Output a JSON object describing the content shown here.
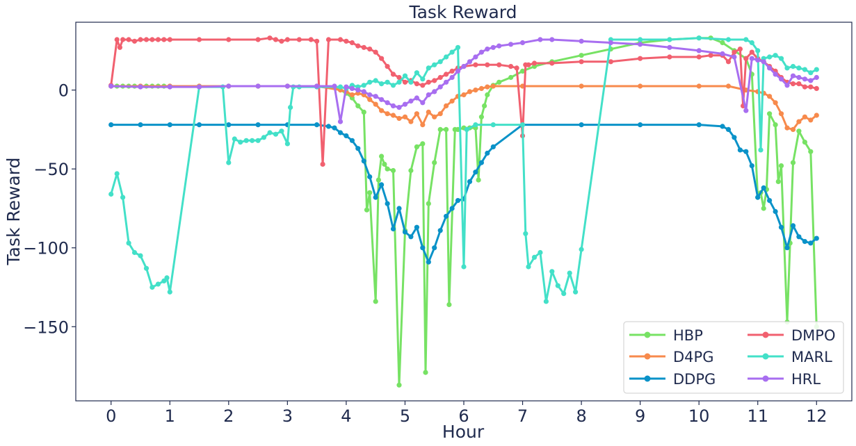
{
  "chart_data": {
    "type": "line",
    "title": "Task Reward",
    "xlabel": "Hour",
    "ylabel": "Task Reward",
    "xlim": [
      -0.6,
      12.6
    ],
    "ylim": [
      -197,
      43
    ],
    "xticks": [
      0,
      1,
      2,
      3,
      4,
      5,
      6,
      7,
      8,
      9,
      10,
      11,
      12
    ],
    "xtick_labels": [
      "0",
      "1",
      "2",
      "3",
      "4",
      "5",
      "6",
      "7",
      "8",
      "9",
      "10",
      "11",
      "12"
    ],
    "yticks": [
      0,
      -50,
      -100,
      -150
    ],
    "ytick_labels": [
      "0",
      "−50",
      "−100",
      "−150"
    ],
    "grid": false,
    "legend": {
      "placement": "lower-right",
      "columns": 2
    },
    "series": [
      {
        "name": "HBP",
        "color": "#77e264",
        "x": [
          0,
          0.1,
          0.2,
          0.3,
          0.4,
          0.5,
          0.6,
          0.7,
          0.8,
          0.9,
          1,
          1.5,
          2,
          2.5,
          3,
          3.5,
          3.8,
          4.0,
          4.1,
          4.2,
          4.3,
          4.35,
          4.4,
          4.5,
          4.55,
          4.6,
          4.65,
          4.7,
          4.8,
          4.9,
          5.0,
          5.1,
          5.2,
          5.3,
          5.35,
          5.4,
          5.5,
          5.6,
          5.7,
          5.75,
          5.85,
          5.9,
          6.0,
          6.1,
          6.2,
          6.25,
          6.3,
          6.35,
          6.4,
          6.5,
          6.6,
          6.8,
          7.0,
          7.2,
          7.5,
          8.0,
          8.5,
          9.0,
          9.5,
          10.0,
          10.2,
          10.4,
          10.6,
          10.8,
          10.9,
          11.0,
          11.05,
          11.1,
          11.15,
          11.2,
          11.3,
          11.35,
          11.4,
          11.5,
          11.55,
          11.6,
          11.7,
          11.8,
          11.9,
          12.0
        ],
        "y": [
          2.5,
          2.5,
          2.5,
          2.5,
          2.5,
          2.5,
          2.5,
          2.5,
          2.5,
          2.5,
          2.5,
          2.5,
          2.5,
          2.5,
          2.5,
          2.5,
          2,
          -2,
          -5,
          -10,
          -14,
          -76,
          -65,
          -134,
          -57,
          -42,
          -47,
          -50,
          -51,
          -187,
          -89,
          -51,
          -36,
          -34,
          -179,
          -72,
          -46,
          -25,
          -25,
          -136,
          -25,
          -25,
          -24,
          -24,
          -24,
          -57,
          -17,
          -10,
          -3,
          3,
          5,
          8,
          12,
          15,
          18,
          22,
          26,
          30,
          32,
          33,
          33,
          30,
          25,
          20,
          10,
          -68,
          -65,
          -75,
          -63,
          -15,
          -22,
          -58,
          -48,
          -147,
          -97,
          -46,
          -26,
          -33,
          -39,
          -150
        ],
        "markers": true
      },
      {
        "name": "D4PG",
        "color": "#f78a4c",
        "x": [
          0,
          0.5,
          1,
          1.5,
          2,
          2.5,
          3,
          3.5,
          3.9,
          4.0,
          4.1,
          4.2,
          4.3,
          4.4,
          4.5,
          4.6,
          4.7,
          4.8,
          4.9,
          5.0,
          5.1,
          5.2,
          5.3,
          5.4,
          5.5,
          5.6,
          5.7,
          5.8,
          5.9,
          6.0,
          6.1,
          6.2,
          6.3,
          6.4,
          6.5,
          7,
          8,
          9,
          10,
          10.5,
          10.8,
          11.0,
          11.1,
          11.2,
          11.3,
          11.4,
          11.5,
          11.6,
          11.7,
          11.8,
          11.9,
          12.0
        ],
        "y": [
          2.5,
          2.5,
          2.5,
          2.5,
          2.5,
          2.5,
          2.5,
          2.5,
          0,
          -1,
          -3,
          -2,
          -3,
          -6,
          -9,
          -13,
          -15,
          -16,
          -18,
          -17,
          -20,
          -15,
          -22,
          -14,
          -17,
          -15,
          -10,
          -7,
          -4,
          -3,
          -1,
          0,
          1,
          2,
          2.5,
          2.5,
          2.5,
          2.5,
          2.5,
          2.5,
          0,
          -1,
          -2,
          -4,
          -8,
          -15,
          -24,
          -25,
          -20,
          -17,
          -19,
          -16
        ],
        "markers": true
      },
      {
        "name": "DDPG",
        "color": "#0a92c8",
        "x": [
          0,
          0.5,
          1,
          1.5,
          2,
          2.5,
          3,
          3.5,
          3.7,
          3.8,
          3.9,
          4.0,
          4.1,
          4.2,
          4.3,
          4.4,
          4.5,
          4.6,
          4.7,
          4.8,
          4.9,
          5.0,
          5.1,
          5.2,
          5.3,
          5.4,
          5.5,
          5.6,
          5.7,
          5.8,
          5.9,
          6.0,
          6.1,
          6.2,
          6.3,
          6.4,
          6.5,
          7,
          8,
          9,
          10,
          10.4,
          10.5,
          10.6,
          10.7,
          10.8,
          10.9,
          11.0,
          11.1,
          11.2,
          11.3,
          11.4,
          11.5,
          11.6,
          11.7,
          11.8,
          11.9,
          12.0
        ],
        "y": [
          -22,
          -22,
          -22,
          -22,
          -22,
          -22,
          -22,
          -22,
          -23,
          -24,
          -27,
          -29,
          -32,
          -37,
          -45,
          -55,
          -68,
          -60,
          -72,
          -88,
          -75,
          -90,
          -93,
          -87,
          -100,
          -109,
          -100,
          -89,
          -80,
          -75,
          -70,
          -69,
          -58,
          -52,
          -46,
          -40,
          -36,
          -22,
          -22,
          -22,
          -22,
          -23,
          -25,
          -30,
          -38,
          -39,
          -48,
          -68,
          -62,
          -70,
          -77,
          -87,
          -100,
          -86,
          -93,
          -96,
          -97,
          -94
        ],
        "markers": true
      },
      {
        "name": "DMPO",
        "color": "#f1606f",
        "x": [
          0,
          0.1,
          0.15,
          0.2,
          0.3,
          0.4,
          0.5,
          0.6,
          0.7,
          0.8,
          0.9,
          1,
          1.5,
          2,
          2.5,
          2.7,
          2.8,
          2.9,
          3,
          3.2,
          3.4,
          3.5,
          3.6,
          3.7,
          3.9,
          4.0,
          4.1,
          4.2,
          4.3,
          4.4,
          4.5,
          4.6,
          4.7,
          4.8,
          4.9,
          5.0,
          5.1,
          5.2,
          5.3,
          5.4,
          5.5,
          5.6,
          5.7,
          5.8,
          5.9,
          6.0,
          6.2,
          6.4,
          6.6,
          6.8,
          6.9,
          7.0,
          7.05,
          7.1,
          7.2,
          7.5,
          8.0,
          8.5,
          9.0,
          9.5,
          10.0,
          10.2,
          10.4,
          10.5,
          10.6,
          10.7,
          10.75,
          10.8,
          10.9,
          11.0,
          11.1,
          11.2,
          11.3,
          11.4,
          11.5,
          11.6,
          11.7,
          11.8,
          11.9,
          12.0
        ],
        "y": [
          3,
          32,
          27,
          32,
          32,
          31,
          32,
          32,
          32,
          32,
          32,
          32,
          32,
          32,
          32,
          33,
          32,
          31,
          32,
          32,
          32,
          31,
          -47,
          32,
          32,
          31,
          30,
          28,
          27,
          26,
          24,
          20,
          15,
          10,
          8,
          5,
          6,
          4,
          3,
          5,
          6,
          8,
          10,
          12,
          14,
          15,
          16,
          16,
          16,
          15,
          14,
          -29,
          16,
          16,
          17,
          17,
          18,
          18,
          20,
          21,
          21,
          22,
          22,
          18,
          24,
          26,
          -10,
          20,
          24,
          20,
          18,
          15,
          12,
          8,
          5,
          4,
          4,
          2,
          2,
          1
        ],
        "markers": true
      },
      {
        "name": "MARL",
        "color": "#43e0c8",
        "x": [
          0,
          0.1,
          0.2,
          0.3,
          0.4,
          0.5,
          0.6,
          0.7,
          0.8,
          0.9,
          0.95,
          1.0,
          1.5,
          1.9,
          2.0,
          2.1,
          2.2,
          2.3,
          2.4,
          2.5,
          2.6,
          2.7,
          2.8,
          2.9,
          3.0,
          3.05,
          3.1,
          3.2,
          3.5,
          3.9,
          4.0,
          4.1,
          4.2,
          4.3,
          4.4,
          4.5,
          4.6,
          4.7,
          4.8,
          4.9,
          5.0,
          5.1,
          5.2,
          5.3,
          5.4,
          5.5,
          5.6,
          5.7,
          5.8,
          5.9,
          6.0,
          6.05,
          6.2,
          6.5,
          7.0,
          7.05,
          7.1,
          7.2,
          7.3,
          7.4,
          7.5,
          7.6,
          7.7,
          7.8,
          7.9,
          8.0,
          8.5,
          9.0,
          9.5,
          10.0,
          10.5,
          10.8,
          10.9,
          11.0,
          11.05,
          11.1,
          11.2,
          11.3,
          11.4,
          11.5,
          11.6,
          11.7,
          11.8,
          11.9,
          12.0
        ],
        "y": [
          -66,
          -53,
          -68,
          -97,
          -103,
          -105,
          -113,
          -125,
          -123,
          -121,
          -119,
          -128,
          2,
          2,
          -46,
          -31,
          -33,
          -32,
          -32,
          -32,
          -30,
          -27,
          -28,
          -26,
          -34,
          -11,
          2,
          2,
          2,
          2,
          1,
          3,
          2,
          3,
          5,
          6,
          4,
          5,
          3,
          5,
          9,
          5,
          11,
          7,
          14,
          16,
          18,
          21,
          24,
          27,
          -112,
          -25,
          -22,
          -22,
          -22,
          -91,
          -112,
          -106,
          -103,
          -134,
          -115,
          -124,
          -129,
          -116,
          -128,
          -101,
          32,
          32,
          32,
          33,
          32,
          32,
          30,
          25,
          -38,
          20,
          21,
          22,
          20,
          14,
          15,
          14,
          13,
          11,
          13
        ],
        "markers": true
      },
      {
        "name": "HRL",
        "color": "#a86ef0",
        "x": [
          0,
          0.5,
          1,
          1.5,
          2,
          2.5,
          3,
          3.5,
          3.8,
          3.9,
          4.0,
          4.1,
          4.2,
          4.3,
          4.4,
          4.5,
          4.6,
          4.7,
          4.8,
          4.9,
          5.0,
          5.1,
          5.2,
          5.3,
          5.4,
          5.5,
          5.6,
          5.7,
          5.8,
          5.9,
          6.0,
          6.1,
          6.2,
          6.3,
          6.4,
          6.5,
          6.6,
          6.8,
          7.0,
          7.3,
          7.5,
          8.0,
          8.5,
          9.0,
          9.5,
          10.0,
          10.4,
          10.6,
          10.8,
          10.9,
          11.0,
          11.1,
          11.2,
          11.3,
          11.4,
          11.5,
          11.6,
          11.7,
          11.8,
          11.9,
          12.0
        ],
        "y": [
          2.5,
          2,
          2,
          2,
          2.5,
          2.5,
          2.5,
          2.5,
          2.5,
          -20,
          2,
          1,
          0,
          -1,
          -3,
          -4,
          -6,
          -8,
          -10,
          -11,
          -9,
          -7,
          -5,
          -8,
          -3,
          -1,
          2,
          5,
          8,
          12,
          15,
          18,
          21,
          24,
          26,
          27,
          28,
          29,
          30,
          32,
          32,
          31,
          30,
          29,
          27,
          25,
          23,
          21,
          -13,
          20,
          19,
          18,
          14,
          10,
          7,
          3,
          9,
          8,
          7,
          6,
          8
        ],
        "markers": true
      }
    ]
  }
}
